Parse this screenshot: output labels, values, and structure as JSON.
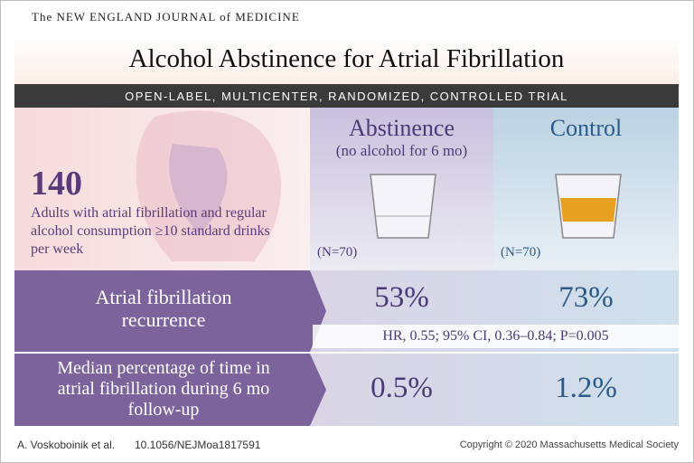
{
  "header": {
    "journal": "The NEW ENGLAND JOURNAL of MEDICINE",
    "title": "Alcohol Abstinence for Atrial Fibrillation",
    "subtitle": "OPEN-LABEL, MULTICENTER, RANDOMIZED, CONTROLLED TRIAL"
  },
  "population": {
    "count": "140",
    "description": "Adults with atrial fibrillation and regular alcohol consumption ≥10 standard drinks per week"
  },
  "groups": [
    {
      "name": "Abstinence",
      "detail": "(no alcohol for 6 mo)",
      "n": "(N=70)"
    },
    {
      "name": "Control",
      "n": "(N=70)"
    }
  ],
  "outcomes": [
    {
      "label": "Atrial fibrillation recurrence",
      "values": [
        "53%",
        "73%"
      ],
      "statistics": "HR, 0.55; 95% CI, 0.36–0.84; P=0.005"
    },
    {
      "label": "Median percentage of time in atrial fibrillation during 6 mo follow-up",
      "values": [
        "0.5%",
        "1.2%"
      ]
    }
  ],
  "footer": {
    "authors": "A. Voskoboinik et al.",
    "doi": "10.1056/NEJMoa1817591",
    "copyright": "Copyright © 2020 Massachusetts Medical Society"
  }
}
